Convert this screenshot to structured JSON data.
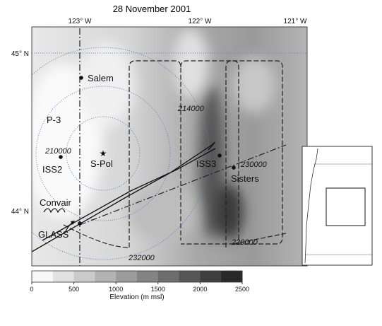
{
  "title": "28 November 2001",
  "map": {
    "lon_labels": [
      "123° W",
      "122° W",
      "121° W"
    ],
    "lat_labels": [
      "45° N",
      "44° N"
    ],
    "places": [
      "Salem",
      "P-3",
      "210000",
      "ISS2",
      "S-Pol",
      "ISS3",
      "230000",
      "Sisters",
      "214000",
      "Convair",
      "GLASS",
      "232000",
      "220000"
    ]
  },
  "colorbar": {
    "ticks": [
      0,
      500,
      1000,
      1500,
      2000,
      2500
    ],
    "label": "Elevation (m msl)"
  }
}
